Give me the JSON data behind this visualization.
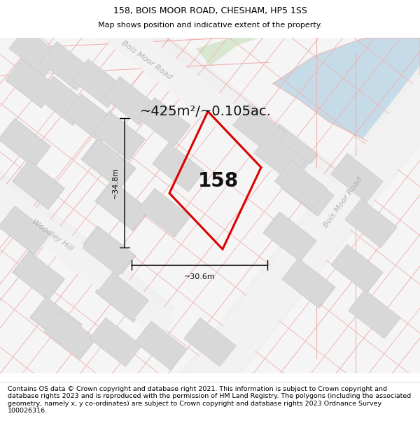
{
  "title": "158, BOIS MOOR ROAD, CHESHAM, HP5 1SS",
  "subtitle": "Map shows position and indicative extent of the property.",
  "area_label": "~425m²/~0.105ac.",
  "dim_vertical": "~34.8m",
  "dim_horizontal": "~30.6m",
  "plot_label": "158",
  "street_label_top": "Bois Moor Road",
  "street_label_right": "Bois Moor Road",
  "street_label_left": "Woodley Hill",
  "footer": "Contains OS data © Crown copyright and database right 2021. This information is subject to Crown copyright and database rights 2023 and is reproduced with the permission of HM Land Registry. The polygons (including the associated geometry, namely x, y co-ordinates) are subject to Crown copyright and database rights 2023 Ordnance Survey 100026316.",
  "map_bg": "#f5f5f5",
  "road_line_color": "#f0b0b0",
  "building_color": "#d8d8d8",
  "building_edge": "#cccccc",
  "plot_polygon_color": "#dd0000",
  "water_color": "#c5dce8",
  "water_color2": "#d5e8d4",
  "title_fontsize": 9,
  "subtitle_fontsize": 8,
  "footer_fontsize": 6.8,
  "annotation_fontsize": 8,
  "area_fontsize": 14,
  "plot_label_fontsize": 20,
  "street_fontsize": 8,
  "title_color": "#000000"
}
